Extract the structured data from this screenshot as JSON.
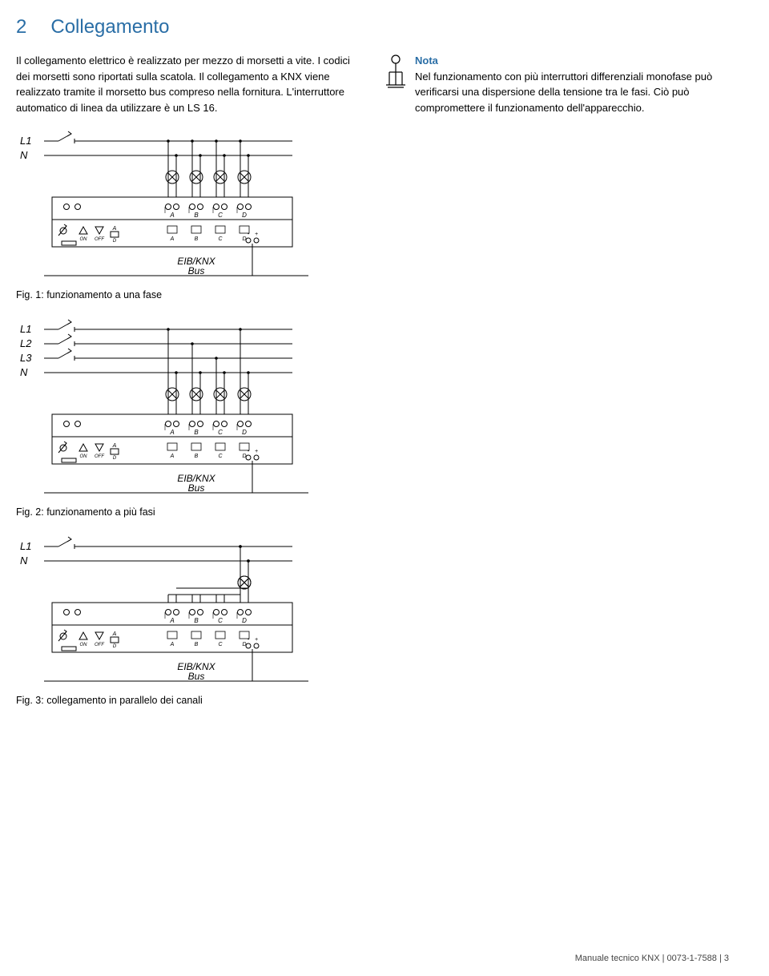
{
  "heading": {
    "num": "2",
    "title": "Collegamento"
  },
  "paragraph": "Il collegamento elettrico è realizzato per mezzo di morsetti a vite. I codici dei morsetti sono riportati sulla scatola. Il collegamento a KNX viene realizzato tramite il morsetto bus compreso nella fornitura. L'interruttore automatico di linea da utilizzare è un LS 16.",
  "note": {
    "label": "Nota",
    "text": "Nel funzionamento con più interruttori differenziali monofase può verificarsi una dispersione della tensione tra le fasi. Ciò può compromettere il funzionamento dell'apparecchio."
  },
  "figures": [
    {
      "caption": "Fig. 1: funzionamento a una fase",
      "lines": [
        "L1",
        "N"
      ],
      "bus": "EIB/KNX",
      "bus2": "Bus",
      "cols": [
        "A",
        "B",
        "C",
        "D"
      ],
      "btns": [
        "ON",
        "OFF"
      ],
      "btnD": "D",
      "loads": 4,
      "loadFrom": 0
    },
    {
      "caption": "Fig. 2: funzionamento a più fasi",
      "lines": [
        "L1",
        "L2",
        "L3",
        "N"
      ],
      "bus": "EIB/KNX",
      "bus2": "Bus",
      "cols": [
        "A",
        "B",
        "C",
        "D"
      ],
      "btns": [
        "ON",
        "OFF"
      ],
      "btnD": "D",
      "loads": 4,
      "loadFrom": 0
    },
    {
      "caption": "Fig. 3: collegamento in parallelo dei canali",
      "lines": [
        "L1",
        "N"
      ],
      "bus": "EIB/KNX",
      "bus2": "Bus",
      "cols": [
        "A",
        "B",
        "C",
        "D"
      ],
      "btns": [
        "ON",
        "OFF"
      ],
      "btnD": "D",
      "loads": 1,
      "loadFrom": 3
    }
  ],
  "footer": "Manuale tecnico KNX | 0073-1-7588 | 3",
  "colors": {
    "accent": "#2a6ea6",
    "line": "#000000"
  }
}
